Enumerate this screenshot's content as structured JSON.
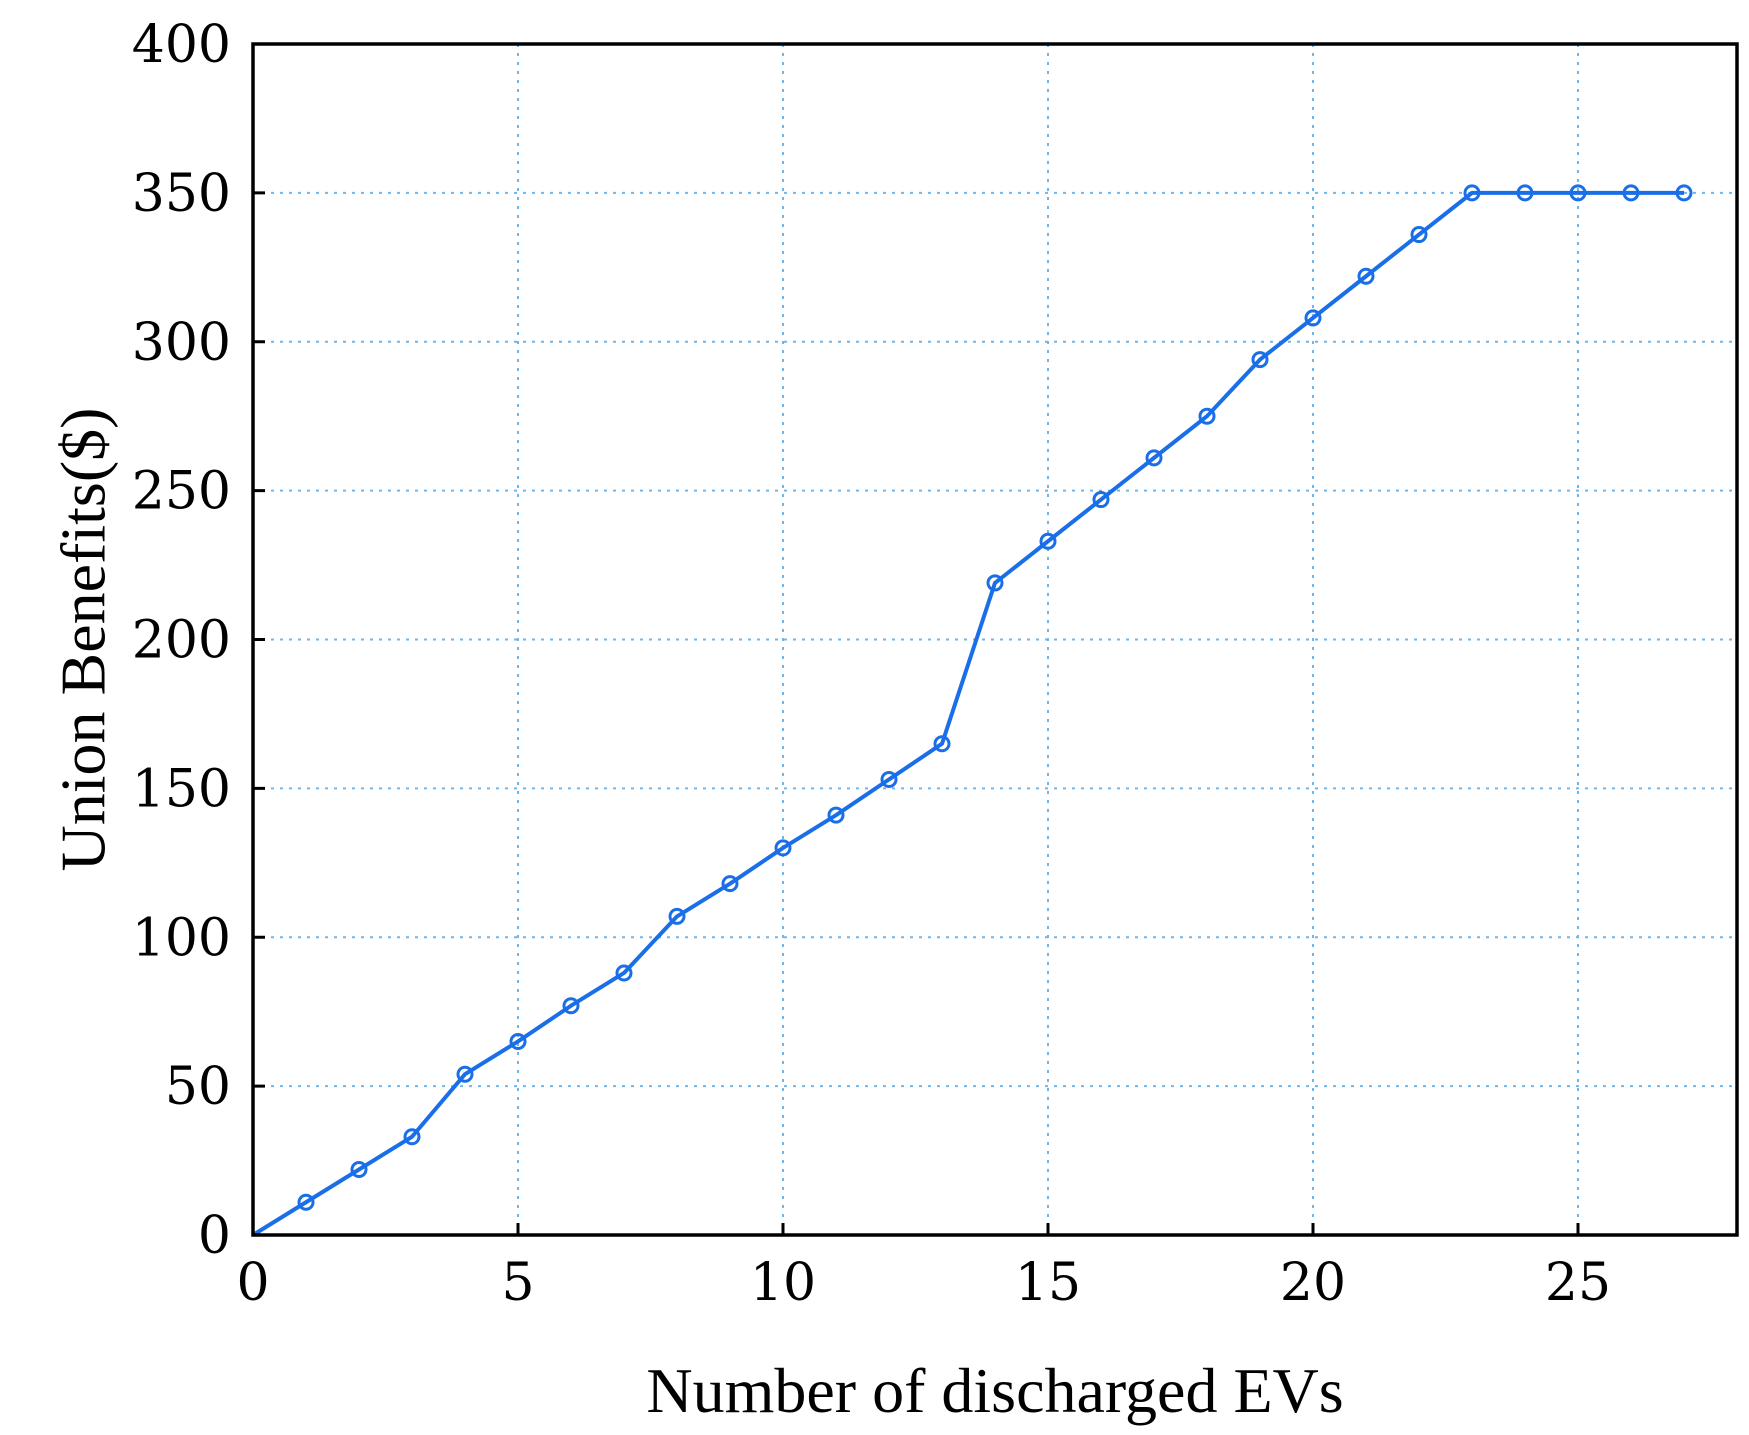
{
  "chart_data": {
    "type": "line",
    "title": "",
    "xlabel": "Number of discharged EVs",
    "ylabel": "Union Benefits($)",
    "xlim": [
      0,
      28
    ],
    "ylim": [
      0,
      400
    ],
    "xticks": [
      0,
      5,
      10,
      15,
      20,
      25
    ],
    "yticks": [
      0,
      50,
      100,
      150,
      200,
      250,
      300,
      350,
      400
    ],
    "grid": true,
    "series": [
      {
        "name": "Union Benefits",
        "color": "#1a6fe8",
        "marker": "circle-open",
        "x": [
          0,
          1,
          2,
          3,
          4,
          5,
          6,
          7,
          8,
          9,
          10,
          11,
          12,
          13,
          14,
          15,
          16,
          17,
          18,
          19,
          20,
          21,
          22,
          23,
          24,
          25,
          26,
          27
        ],
        "y": [
          0,
          11,
          22,
          33,
          54,
          65,
          77,
          88,
          107,
          118,
          130,
          141,
          153,
          165,
          219,
          233,
          247,
          261,
          275,
          294,
          308,
          322,
          336,
          350,
          350,
          350,
          350,
          350
        ]
      }
    ]
  }
}
